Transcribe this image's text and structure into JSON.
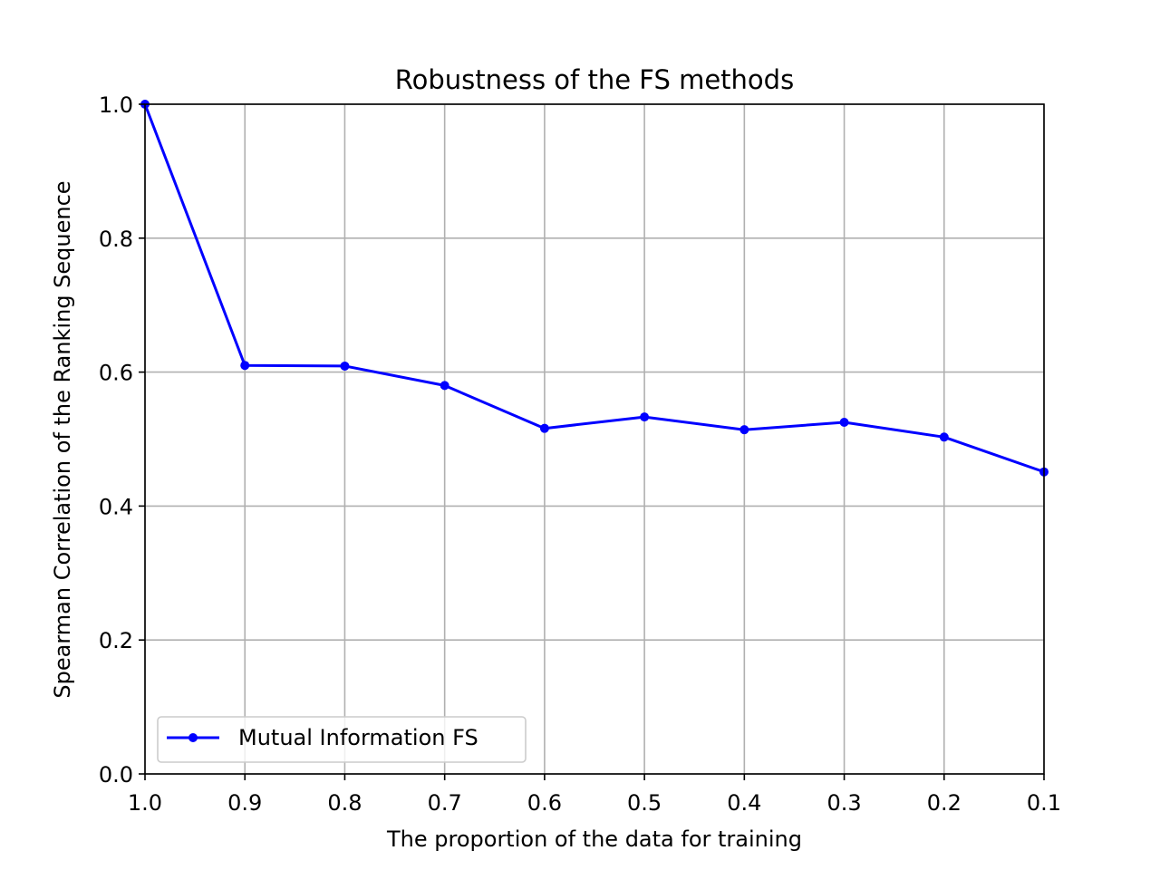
{
  "chart_data": {
    "type": "line",
    "title": "Robustness of the FS methods",
    "xlabel": "The proportion of the data for training",
    "ylabel": "Spearman Correlation of the Ranking Sequence",
    "x": [
      1.0,
      0.9,
      0.8,
      0.7,
      0.6,
      0.5,
      0.4,
      0.3,
      0.2,
      0.1
    ],
    "x_tick_labels": [
      "1.0",
      "0.9",
      "0.8",
      "0.7",
      "0.6",
      "0.5",
      "0.4",
      "0.3",
      "0.2",
      "0.1"
    ],
    "y_tick_values": [
      0.0,
      0.2,
      0.4,
      0.6,
      0.8,
      1.0
    ],
    "y_tick_labels": [
      "0.0",
      "0.2",
      "0.4",
      "0.6",
      "0.8",
      "1.0"
    ],
    "xlim": [
      1.0,
      0.1
    ],
    "ylim": [
      0.0,
      1.0
    ],
    "x_inverted": true,
    "grid": true,
    "legend_position": "lower-left",
    "series": [
      {
        "name": "Mutual Information FS",
        "color": "#0000ff",
        "marker": "circle",
        "values": [
          1.0,
          0.61,
          0.609,
          0.58,
          0.516,
          0.533,
          0.514,
          0.525,
          0.503,
          0.451
        ]
      }
    ]
  }
}
